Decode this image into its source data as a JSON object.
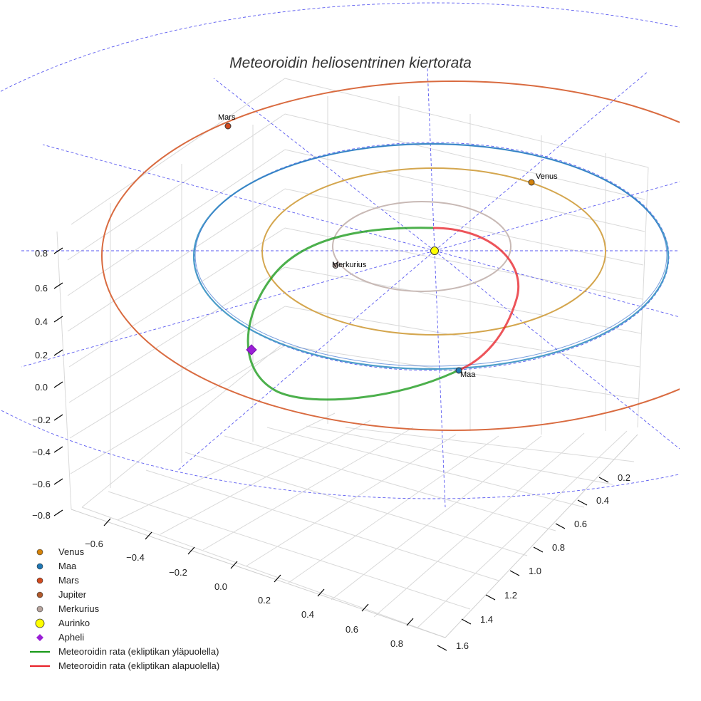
{
  "chart_data": {
    "type": "line",
    "title": "Meteoroidin heliosentrinen kiertorata",
    "axes": {
      "x_ticks": [
        "−0.6",
        "−0.4",
        "−0.2",
        "0.0",
        "0.2",
        "0.4",
        "0.6",
        "0.8"
      ],
      "y_ticks": [
        "0.2",
        "0.4",
        "0.6",
        "0.8",
        "1.0",
        "1.2",
        "1.4",
        "1.6"
      ],
      "z_ticks": [
        "0.8",
        "0.6",
        "0.4",
        "0.2",
        "0.0",
        "−0.2",
        "−0.4",
        "−0.6",
        "−0.8"
      ],
      "grid": true
    },
    "orbits": [
      {
        "name": "Merkurius",
        "color": "#c8b9b5"
      },
      {
        "name": "Venus",
        "color": "#d4a64e"
      },
      {
        "name": "Maa",
        "color": "#4a9cc8"
      },
      {
        "name": "Mars",
        "color": "#d96b40"
      }
    ],
    "point_labels": {
      "mars": "Mars",
      "venus": "Venus",
      "merkurius": "Merkurius",
      "maa": "Maa"
    },
    "legend": {
      "placement": "bottom-left",
      "entries": [
        {
          "label": "Venus",
          "marker": "circle",
          "color": "#d4820a"
        },
        {
          "label": "Maa",
          "marker": "circle",
          "color": "#1f77b4"
        },
        {
          "label": "Mars",
          "marker": "circle",
          "color": "#d14a1f"
        },
        {
          "label": "Jupiter",
          "marker": "circle",
          "color": "#b05a2c"
        },
        {
          "label": "Merkurius",
          "marker": "circle",
          "color": "#b7a49e"
        },
        {
          "label": "Aurinko",
          "marker": "big-circle",
          "color": "#ffff00"
        },
        {
          "label": "Apheli",
          "marker": "diamond",
          "color": "#9a1fd6"
        },
        {
          "label": "Meteoroidin rata (ekliptikan yläpuolella)",
          "marker": "line",
          "color": "#1a9a1a"
        },
        {
          "label": "Meteoroidin rata (ekliptikan alapuolella)",
          "marker": "line",
          "color": "#e8242c"
        }
      ]
    }
  }
}
